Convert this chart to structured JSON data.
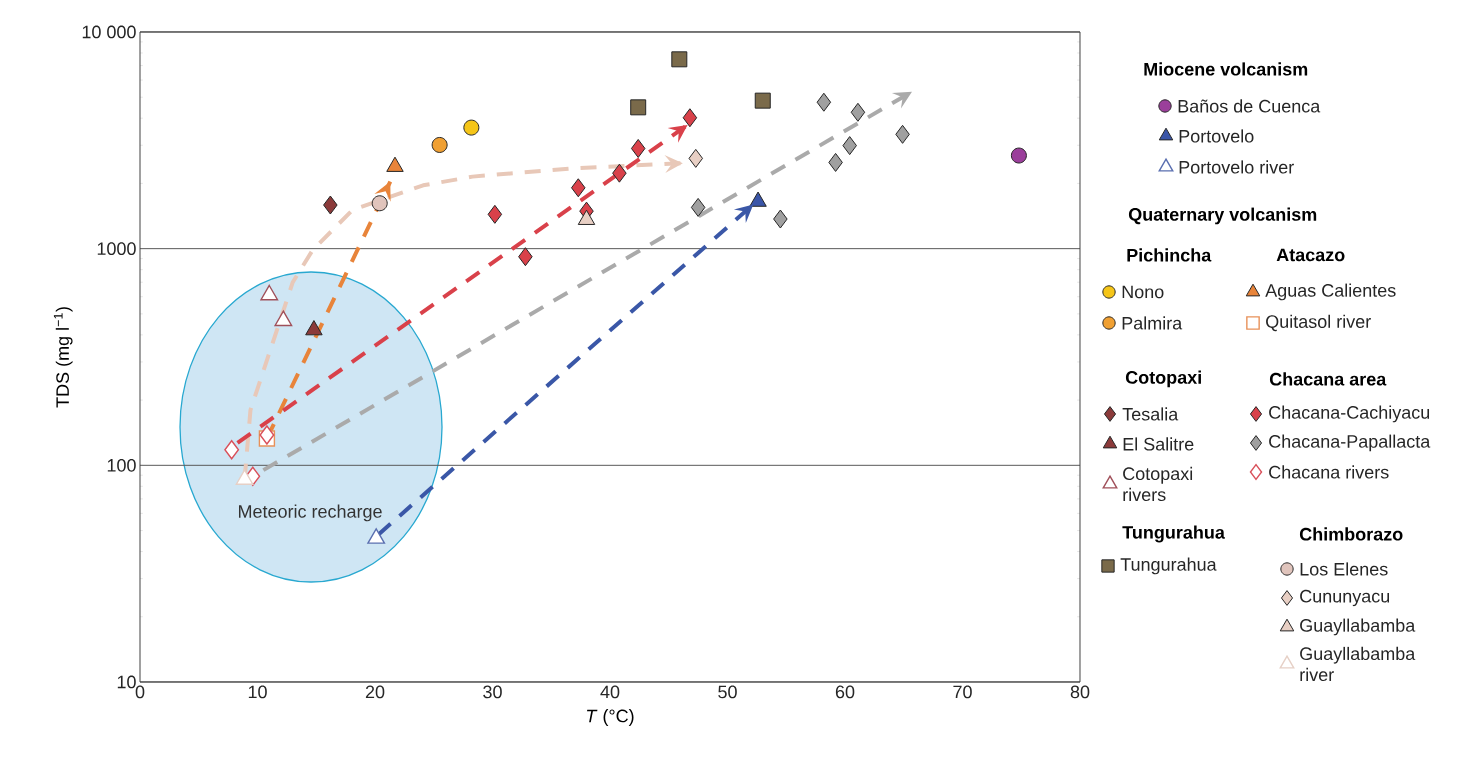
{
  "chart_data": {
    "type": "scatter",
    "xlabel": "*T* (°C)",
    "ylabel": "TDS (mg l$^{−1}$)",
    "xlim": [
      0,
      80
    ],
    "ylim": [
      10,
      10000
    ],
    "log": "y",
    "grid": "y",
    "legend": "right",
    "xticks": [
      0,
      10,
      20,
      30,
      40,
      50,
      60,
      70,
      80
    ],
    "yticks": [
      10,
      100,
      1000,
      {
        "value": 10000,
        "label": "10 000"
      }
    ],
    "annotations": [
      "Meteoric recharge",
      "Miocene volcanism",
      "Quaternary volcanism",
      "Pichincha",
      "Atacazo",
      "Cotopaxi",
      "Chacana area",
      "Tungurahua",
      "Chimborazo"
    ],
    "series": [
      {
        "name": "Baños de Cuenca",
        "color": "#9b3f9b",
        "marker": "circle",
        "x": [
          74.8
        ],
        "values": [
          2690
        ]
      },
      {
        "name": "Portovelo",
        "color": "#3a55a8",
        "marker": "triangle",
        "x": [
          52.6
        ],
        "values": [
          1650
        ]
      },
      {
        "name": "Portovelo river",
        "color": "#5a6fb0",
        "marker": "triangle",
        "x": [
          20.1
        ],
        "values": [
          46
        ]
      },
      {
        "name": "Nono",
        "color": "#f5c518",
        "marker": "circle",
        "x": [
          28.2
        ],
        "values": [
          3620
        ]
      },
      {
        "name": "Palmira",
        "color": "#f0a033",
        "marker": "circle",
        "x": [
          25.5
        ],
        "values": [
          3010
        ]
      },
      {
        "name": "Aguas Calientes",
        "color": "#e8843a",
        "marker": "triangle",
        "x": [
          21.7
        ],
        "values": [
          2390
        ]
      },
      {
        "name": "Quitasol river",
        "color": "#e8915a",
        "marker": "square",
        "x": [
          10.8
        ],
        "values": [
          133
        ]
      },
      {
        "name": "Tesalia",
        "color": "#8b3a3a",
        "marker": "diamond",
        "x": [
          16.2
        ],
        "values": [
          1590
        ]
      },
      {
        "name": "El Salitre",
        "color": "#8b3a3a",
        "marker": "triangle",
        "x": [
          14.8
        ],
        "values": [
          421
        ]
      },
      {
        "name": "Cotopaxi rivers",
        "color": "#a0505a",
        "marker": "triangle",
        "x": [
          11.0,
          12.2
        ],
        "values": [
          611,
          465
        ]
      },
      {
        "name": "Chacana-Cachiyacu",
        "color": "#d9414a",
        "marker": "diamond",
        "x": [
          30.2,
          32.8,
          37.3,
          38.0,
          46.8,
          42.4,
          40.8
        ],
        "values": [
          1440,
          918,
          1910,
          1490,
          4020,
          2900,
          2230
        ]
      },
      {
        "name": "Chacana-Papallacta",
        "color": "#a0a0a0",
        "marker": "diamond",
        "x": [
          58.2,
          61.1,
          64.9,
          60.4,
          59.2,
          47.5,
          54.5
        ],
        "values": [
          4740,
          4260,
          3370,
          2990,
          2500,
          1550,
          1370
        ]
      },
      {
        "name": "Chacana rivers",
        "color": "#d9505a",
        "marker": "diamond",
        "x": [
          10.8,
          7.8,
          9.6
        ],
        "values": [
          138,
          118,
          89
        ]
      },
      {
        "name": "Tungurahua",
        "color": "#7a6a4a",
        "marker": "square",
        "x": [
          45.9,
          42.4,
          53.0
        ],
        "values": [
          7480,
          4490,
          4820
        ]
      },
      {
        "name": "Los Elenes",
        "color": "#e0c4bc",
        "marker": "circle",
        "x": [
          20.4
        ],
        "values": [
          1620
        ]
      },
      {
        "name": "Cununyacu",
        "color": "#e8cfc4",
        "marker": "diamond",
        "x": [
          47.3
        ],
        "values": [
          2610
        ]
      },
      {
        "name": "Guayllabamba",
        "color": "#e8cfc4",
        "marker": "triangle",
        "x": [
          38.0
        ],
        "values": [
          1360
        ]
      },
      {
        "name": "Guayllabamba river",
        "color": "#e6d0c6",
        "marker": "triangle",
        "x": [
          8.9
        ],
        "values": [
          86
        ]
      },
      {
        "type": "line",
        "line_style": "dashed",
        "color": "#e8843a",
        "x": [
          10.8,
          21.3
        ],
        "values": [
          133,
          2040
        ]
      },
      {
        "type": "line",
        "line_style": "dashed",
        "color": "#e8c8b8",
        "x": [
          8.9,
          9.4,
          13.0,
          14.7,
          18.1,
          24.1,
          28.3,
          36.9,
          46.2
        ],
        "values": [
          86,
          180,
          700,
          986,
          1510,
          1960,
          2150,
          2350,
          2480
        ]
      },
      {
        "type": "line",
        "line_style": "dashed",
        "color": "#d9414a",
        "x": [
          8.3,
          46.6
        ],
        "values": [
          127,
          3720
        ]
      },
      {
        "type": "line",
        "line_style": "dashed",
        "color": "#aaaaaa",
        "x": [
          10.5,
          65.7
        ],
        "values": [
          95,
          5300
        ]
      },
      {
        "type": "line",
        "line_style": "dashed",
        "color": "#3a57a7",
        "x": [
          20.3,
          52.2
        ],
        "values": [
          48,
          1600
        ]
      }
    ]
  }
}
